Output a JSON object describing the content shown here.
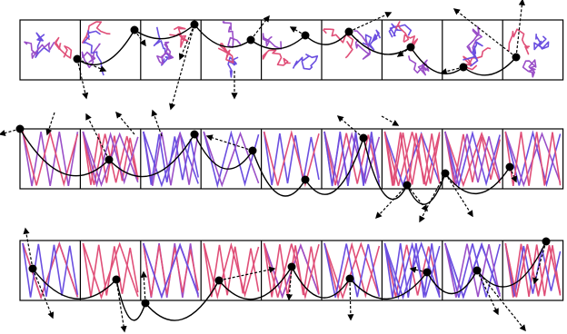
{
  "figure": {
    "kind": "trajectory panels",
    "rows": 3,
    "panels_per_row": 9,
    "colors": {
      "panel_border": "#000000",
      "trajectory_blue": "#6b4fe0",
      "trajectory_purple": "#9a4fc8",
      "trajectory_pink": "#e04f78",
      "path_curve": "#000000",
      "arrow": "#000000"
    },
    "legend": null,
    "title": ""
  }
}
